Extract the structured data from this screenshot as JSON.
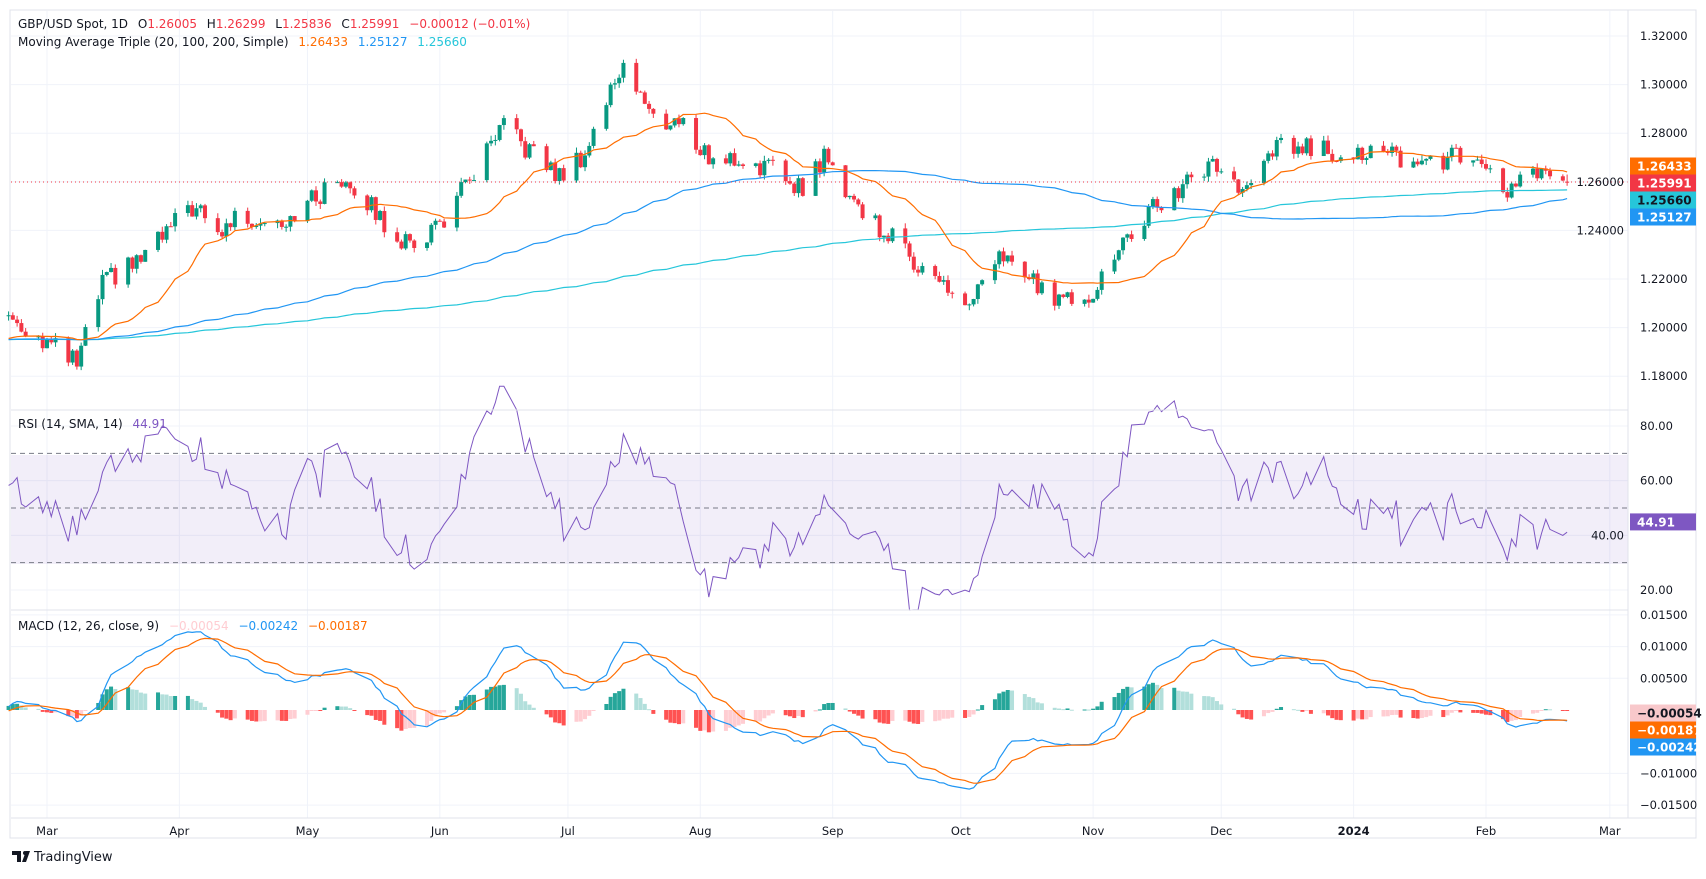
{
  "header": {
    "symbol": "GBP/USD Spot, 1D",
    "o_label": "O",
    "o": "1.26005",
    "h_label": "H",
    "h": "1.26299",
    "l_label": "L",
    "l": "1.25836",
    "c_label": "C",
    "c": "1.25991",
    "change": "−0.00012 (−0.01%)",
    "ma_title": "Moving Average Triple (20, 100, 200, Simple)",
    "ma20": "1.26433",
    "ma100": "1.25127",
    "ma200": "1.25660"
  },
  "rsi": {
    "title": "RSI (14, SMA, 14)",
    "value": "44.91",
    "ticks": [
      "80.00",
      "60.00",
      "40.00",
      "20.00"
    ]
  },
  "macd": {
    "title": "MACD (12, 26, close, 9)",
    "hist": "−0.00054",
    "macd": "−0.00242",
    "signal": "−0.00187",
    "ticks": [
      "0.01500",
      "0.01000",
      "0.00500",
      "−0.01000",
      "−0.01500"
    ]
  },
  "price_axis": {
    "ticks": [
      "1.32000",
      "1.30000",
      "1.28000",
      "1.26000",
      "1.24000",
      "1.22000",
      "1.20000",
      "1.18000"
    ],
    "badges": {
      "ma20": "1.26433",
      "last": "1.25991",
      "ma200": "1.25660",
      "ma100": "1.25127"
    }
  },
  "time_axis": [
    "Mar",
    "Apr",
    "May",
    "Jun",
    "Jul",
    "Aug",
    "Sep",
    "Oct",
    "Nov",
    "Dec",
    "2024",
    "Feb",
    "Mar"
  ],
  "brand": "TradingView",
  "colors": {
    "up": "#089981",
    "down": "#f23645",
    "ma20": "#ff6d00",
    "ma100": "#2196f3",
    "ma200": "#26c6da",
    "rsi": "#7e57c2",
    "macd": "#2196f3",
    "signal": "#ff6d00"
  },
  "chart_data": {
    "type": "candlestick",
    "instrument": "GBP/USD",
    "interval": "1D",
    "last_bar": {
      "open": 1.26005,
      "high": 1.26299,
      "low": 1.25836,
      "close": 1.25991
    },
    "price_range": [
      1.17,
      1.325
    ],
    "approx_close_path": [
      [
        "2023-02-20",
        1.205
      ],
      [
        "2023-03-08",
        1.185
      ],
      [
        "2023-03-14",
        1.218
      ],
      [
        "2023-03-23",
        1.228
      ],
      [
        "2023-04-04",
        1.25
      ],
      [
        "2023-04-10",
        1.238
      ],
      [
        "2023-04-14",
        1.245
      ],
      [
        "2023-04-26",
        1.245
      ],
      [
        "2023-05-10",
        1.262
      ],
      [
        "2023-05-19",
        1.243
      ],
      [
        "2023-05-25",
        1.233
      ],
      [
        "2023-06-02",
        1.245
      ],
      [
        "2023-06-16",
        1.282
      ],
      [
        "2023-06-29",
        1.262
      ],
      [
        "2023-07-05",
        1.272
      ],
      [
        "2023-07-14",
        1.31
      ],
      [
        "2023-07-21",
        1.285
      ],
      [
        "2023-07-27",
        1.285
      ],
      [
        "2023-08-03",
        1.27
      ],
      [
        "2023-08-14",
        1.268
      ],
      [
        "2023-08-25",
        1.258
      ],
      [
        "2023-08-30",
        1.27
      ],
      [
        "2023-09-08",
        1.248
      ],
      [
        "2023-09-22",
        1.225
      ],
      [
        "2023-10-03",
        1.208
      ],
      [
        "2023-10-11",
        1.23
      ],
      [
        "2023-10-20",
        1.215
      ],
      [
        "2023-10-26",
        1.212
      ],
      [
        "2023-11-01",
        1.215
      ],
      [
        "2023-11-07",
        1.232
      ],
      [
        "2023-11-14",
        1.247
      ],
      [
        "2023-11-29",
        1.268
      ],
      [
        "2023-12-07",
        1.255
      ],
      [
        "2023-12-14",
        1.275
      ],
      [
        "2023-12-27",
        1.273
      ],
      [
        "2024-01-05",
        1.272
      ],
      [
        "2024-01-17",
        1.268
      ],
      [
        "2024-01-26",
        1.27
      ],
      [
        "2024-02-02",
        1.262
      ],
      [
        "2024-02-05",
        1.255
      ],
      [
        "2024-02-12",
        1.263
      ],
      [
        "2024-02-20",
        1.2599
      ]
    ],
    "indicators": [
      "SMA 20",
      "SMA 100",
      "SMA 200",
      "RSI 14",
      "MACD 12 26 9"
    ],
    "rsi_levels": [
      70,
      50,
      30
    ],
    "rsi_range": [
      15,
      85
    ],
    "macd_range": [
      -0.0165,
      0.016
    ]
  }
}
